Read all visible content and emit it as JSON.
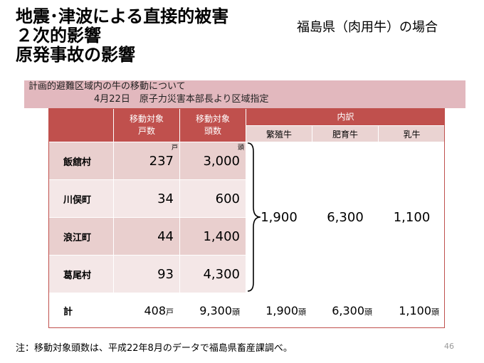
{
  "title": {
    "line1": "地震･津波による直接的被害",
    "line2": "２次的影響",
    "line3": "原発事故の影響"
  },
  "region": "福島県（肉用牛）の場合",
  "notice": {
    "line1": "計画的避難区域内の牛の移動について",
    "line2": "4月22日　原子力災害本部長より区域指定"
  },
  "table": {
    "headers": {
      "households": "移動対象\n戸数",
      "heads": "移動対象\n頭数",
      "breakdown": "内訳",
      "breeding": "繁殖牛",
      "fattening": "肥育牛",
      "dairy": "乳牛"
    },
    "unit_household": "戸",
    "unit_head": "頭",
    "rows": [
      {
        "name": "飯舘村",
        "households": "237",
        "heads": "3,000"
      },
      {
        "name": "川俣町",
        "households": "34",
        "heads": "600"
      },
      {
        "name": "浪江町",
        "households": "44",
        "heads": "1,400"
      },
      {
        "name": "葛尾村",
        "households": "93",
        "heads": "4,300"
      }
    ],
    "breakdown_values": {
      "breeding": "1,900",
      "fattening": "6,300",
      "dairy": "1,100"
    },
    "total": {
      "label": "計",
      "households": "408",
      "heads": "9,300",
      "breeding": "1,900",
      "fattening": "6,300",
      "dairy": "1,100"
    }
  },
  "footnote": "注：移動対象頭数は、平成22年8月のデータで福島県畜産課調べ。",
  "page_number": "46"
}
